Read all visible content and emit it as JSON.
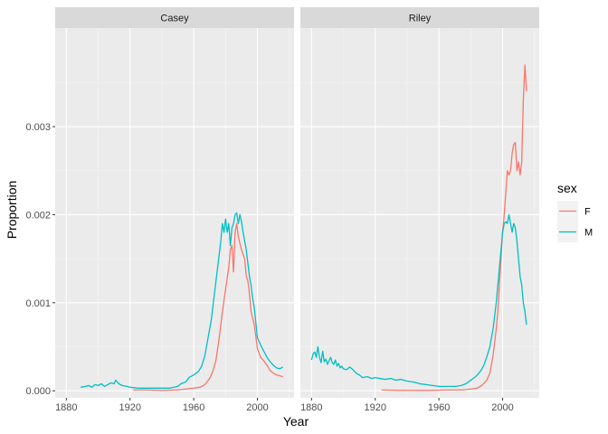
{
  "chart_data": {
    "type": "line",
    "xlabel": "Year",
    "ylabel": "Proportion",
    "xlim": [
      1873,
      2023
    ],
    "ylim": [
      -8e-05,
      0.00412
    ],
    "x_ticks": [
      1880,
      1920,
      1960,
      2000
    ],
    "y_ticks": [
      0.0,
      0.001,
      0.002,
      0.003
    ],
    "x_tick_labels": [
      "1880",
      "1920",
      "1960",
      "2000"
    ],
    "y_tick_labels": [
      "0.000",
      "0.001",
      "0.002",
      "0.003"
    ],
    "grid": true,
    "legend": {
      "title": "sex",
      "position": "right",
      "entries": [
        {
          "label": "F",
          "color": "#F8766D"
        },
        {
          "label": "M",
          "color": "#00BFC4"
        }
      ]
    },
    "panels": [
      {
        "title": "Casey",
        "series": [
          {
            "name": "F",
            "color": "#F8766D",
            "points": [
              [
                1922,
                1e-05
              ],
              [
                1930,
                1e-05
              ],
              [
                1940,
                5e-06
              ],
              [
                1950,
                1e-05
              ],
              [
                1955,
                2e-05
              ],
              [
                1960,
                3e-05
              ],
              [
                1964,
                4e-05
              ],
              [
                1967,
                7e-05
              ],
              [
                1970,
                0.00014
              ],
              [
                1972,
                0.00022
              ],
              [
                1974,
                0.00035
              ],
              [
                1976,
                0.0006
              ],
              [
                1978,
                0.0009
              ],
              [
                1980,
                0.00115
              ],
              [
                1982,
                0.0014
              ],
              [
                1983,
                0.0016
              ],
              [
                1984,
                0.00165
              ],
              [
                1985,
                0.00135
              ],
              [
                1986,
                0.0018
              ],
              [
                1987,
                0.0019
              ],
              [
                1988,
                0.00175
              ],
              [
                1990,
                0.0016
              ],
              [
                1991,
                0.00155
              ],
              [
                1992,
                0.0015
              ],
              [
                1993,
                0.0013
              ],
              [
                1994,
                0.00125
              ],
              [
                1995,
                0.0011
              ],
              [
                1996,
                0.0009
              ],
              [
                1998,
                0.00075
              ],
              [
                2000,
                0.00048
              ],
              [
                2002,
                0.00038
              ],
              [
                2004,
                0.00034
              ],
              [
                2006,
                0.00029
              ],
              [
                2008,
                0.00023
              ],
              [
                2010,
                0.0002
              ],
              [
                2012,
                0.00018
              ],
              [
                2014,
                0.00017
              ],
              [
                2016,
                0.00016
              ]
            ]
          },
          {
            "name": "M",
            "color": "#00BFC4",
            "points": [
              [
                1889,
                4e-05
              ],
              [
                1892,
                5e-05
              ],
              [
                1894,
                6e-05
              ],
              [
                1896,
                4e-05
              ],
              [
                1898,
                7e-05
              ],
              [
                1900,
                6e-05
              ],
              [
                1902,
                8e-05
              ],
              [
                1904,
                5e-05
              ],
              [
                1906,
                7e-05
              ],
              [
                1908,
                9e-05
              ],
              [
                1910,
                8e-05
              ],
              [
                1911,
                0.00012
              ],
              [
                1913,
                8e-05
              ],
              [
                1915,
                6e-05
              ],
              [
                1918,
                5e-05
              ],
              [
                1920,
                4e-05
              ],
              [
                1925,
                3e-05
              ],
              [
                1930,
                3e-05
              ],
              [
                1935,
                3e-05
              ],
              [
                1940,
                3e-05
              ],
              [
                1945,
                3e-05
              ],
              [
                1950,
                5e-05
              ],
              [
                1952,
                8e-05
              ],
              [
                1955,
                0.0001
              ],
              [
                1957,
                0.00015
              ],
              [
                1960,
                0.00018
              ],
              [
                1963,
                0.00022
              ],
              [
                1965,
                0.00028
              ],
              [
                1967,
                0.0004
              ],
              [
                1969,
                0.0006
              ],
              [
                1971,
                0.0008
              ],
              [
                1973,
                0.0011
              ],
              [
                1975,
                0.0014
              ],
              [
                1977,
                0.0017
              ],
              [
                1978,
                0.0019
              ],
              [
                1979,
                0.0018
              ],
              [
                1980,
                0.00195
              ],
              [
                1981,
                0.0018
              ],
              [
                1982,
                0.0019
              ],
              [
                1983,
                0.00165
              ],
              [
                1984,
                0.00185
              ],
              [
                1985,
                0.0019
              ],
              [
                1986,
                0.002
              ],
              [
                1987,
                0.00202
              ],
              [
                1988,
                0.0019
              ],
              [
                1989,
                0.002
              ],
              [
                1990,
                0.00192
              ],
              [
                1991,
                0.0018
              ],
              [
                1992,
                0.0017
              ],
              [
                1993,
                0.0016
              ],
              [
                1994,
                0.00145
              ],
              [
                1995,
                0.0013
              ],
              [
                1996,
                0.0012
              ],
              [
                1997,
                0.00105
              ],
              [
                1998,
                0.00095
              ],
              [
                2000,
                0.0006
              ],
              [
                2002,
                0.00052
              ],
              [
                2004,
                0.00045
              ],
              [
                2006,
                0.00038
              ],
              [
                2008,
                0.00033
              ],
              [
                2010,
                0.00029
              ],
              [
                2012,
                0.00026
              ],
              [
                2014,
                0.00025
              ],
              [
                2016,
                0.00027
              ]
            ]
          }
        ]
      },
      {
        "title": "Riley",
        "series": [
          {
            "name": "F",
            "color": "#F8766D",
            "points": [
              [
                1924,
                1e-05
              ],
              [
                1935,
                5e-06
              ],
              [
                1945,
                5e-06
              ],
              [
                1955,
                5e-06
              ],
              [
                1965,
                1e-05
              ],
              [
                1975,
                1e-05
              ],
              [
                1980,
                2e-05
              ],
              [
                1984,
                3e-05
              ],
              [
                1987,
                6e-05
              ],
              [
                1990,
                0.00012
              ],
              [
                1992,
                0.0002
              ],
              [
                1994,
                0.0004
              ],
              [
                1996,
                0.0007
              ],
              [
                1997,
                0.0009
              ],
              [
                1998,
                0.0012
              ],
              [
                1999,
                0.0015
              ],
              [
                2000,
                0.0018
              ],
              [
                2001,
                0.002
              ],
              [
                2002,
                0.00225
              ],
              [
                2003,
                0.0025
              ],
              [
                2004,
                0.00245
              ],
              [
                2005,
                0.0025
              ],
              [
                2006,
                0.0027
              ],
              [
                2007,
                0.0028
              ],
              [
                2008,
                0.00282
              ],
              [
                2009,
                0.0025
              ],
              [
                2010,
                0.0026
              ],
              [
                2011,
                0.00245
              ],
              [
                2012,
                0.0026
              ],
              [
                2013,
                0.0033
              ],
              [
                2014,
                0.0037
              ],
              [
                2015,
                0.0034
              ]
            ]
          },
          {
            "name": "M",
            "color": "#00BFC4",
            "points": [
              [
                1880,
                0.00035
              ],
              [
                1881,
                0.00042
              ],
              [
                1882,
                0.00044
              ],
              [
                1883,
                0.00038
              ],
              [
                1884,
                0.0005
              ],
              [
                1885,
                0.00038
              ],
              [
                1886,
                0.00032
              ],
              [
                1887,
                0.00045
              ],
              [
                1888,
                0.00033
              ],
              [
                1889,
                0.00036
              ],
              [
                1890,
                0.0003
              ],
              [
                1891,
                0.00034
              ],
              [
                1892,
                0.00038
              ],
              [
                1893,
                0.00032
              ],
              [
                1894,
                0.0003
              ],
              [
                1895,
                0.00035
              ],
              [
                1896,
                0.00028
              ],
              [
                1897,
                0.00031
              ],
              [
                1898,
                0.00026
              ],
              [
                1899,
                0.00028
              ],
              [
                1900,
                0.00025
              ],
              [
                1902,
                0.00024
              ],
              [
                1904,
                0.00027
              ],
              [
                1906,
                0.00024
              ],
              [
                1908,
                0.0002
              ],
              [
                1910,
                0.00018
              ],
              [
                1912,
                0.00015
              ],
              [
                1915,
                0.00016
              ],
              [
                1918,
                0.00014
              ],
              [
                1920,
                0.00015
              ],
              [
                1923,
                0.00014
              ],
              [
                1926,
                0.00013
              ],
              [
                1930,
                0.00014
              ],
              [
                1933,
                0.00012
              ],
              [
                1936,
                0.00013
              ],
              [
                1940,
                0.00011
              ],
              [
                1944,
                0.0001
              ],
              [
                1948,
                8e-05
              ],
              [
                1952,
                7e-05
              ],
              [
                1956,
                6e-05
              ],
              [
                1960,
                5e-05
              ],
              [
                1965,
                5e-05
              ],
              [
                1970,
                5e-05
              ],
              [
                1974,
                6e-05
              ],
              [
                1977,
                8e-05
              ],
              [
                1980,
                0.00012
              ],
              [
                1983,
                0.00016
              ],
              [
                1986,
                0.00022
              ],
              [
                1988,
                0.00028
              ],
              [
                1990,
                0.00038
              ],
              [
                1992,
                0.0005
              ],
              [
                1994,
                0.0007
              ],
              [
                1996,
                0.001
              ],
              [
                1998,
                0.0014
              ],
              [
                1999,
                0.0016
              ],
              [
                2000,
                0.0018
              ],
              [
                2001,
                0.0019
              ],
              [
                2002,
                0.00192
              ],
              [
                2003,
                0.0019
              ],
              [
                2004,
                0.002
              ],
              [
                2005,
                0.0019
              ],
              [
                2006,
                0.0018
              ],
              [
                2007,
                0.0019
              ],
              [
                2008,
                0.00185
              ],
              [
                2009,
                0.0017
              ],
              [
                2010,
                0.0015
              ],
              [
                2011,
                0.0013
              ],
              [
                2012,
                0.0012
              ],
              [
                2013,
                0.001
              ],
              [
                2014,
                0.0009
              ],
              [
                2015,
                0.00075
              ]
            ]
          }
        ]
      }
    ]
  }
}
